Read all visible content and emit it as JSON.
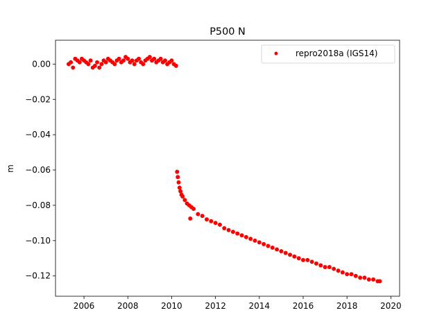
{
  "chart_data": {
    "type": "scatter",
    "title": "P500 N",
    "xlabel": "",
    "ylabel": "m",
    "xlim": [
      2004.7,
      2020.4
    ],
    "ylim": [
      -0.1315,
      0.0135
    ],
    "xticks": [
      2006,
      2008,
      2010,
      2012,
      2014,
      2016,
      2018,
      2020
    ],
    "xtick_labels": [
      "2006",
      "2008",
      "2010",
      "2012",
      "2014",
      "2016",
      "2018",
      "2020"
    ],
    "yticks": [
      0.0,
      -0.02,
      -0.04,
      -0.06,
      -0.08,
      -0.1,
      -0.12
    ],
    "ytick_labels": [
      "0.00",
      "−0.02",
      "−0.04",
      "−0.06",
      "−0.08",
      "−0.10",
      "−0.12"
    ],
    "grid": false,
    "legend_position": "top-right",
    "color": "#ff0000",
    "series": [
      {
        "name": "repro2018a (IGS14)",
        "x": [
          2005.3,
          2005.4,
          2005.5,
          2005.6,
          2005.7,
          2005.8,
          2005.9,
          2006.0,
          2006.1,
          2006.2,
          2006.3,
          2006.4,
          2006.5,
          2006.6,
          2006.7,
          2006.8,
          2006.9,
          2007.0,
          2007.1,
          2007.2,
          2007.3,
          2007.4,
          2007.5,
          2007.6,
          2007.7,
          2007.8,
          2007.9,
          2008.0,
          2008.1,
          2008.2,
          2008.3,
          2008.4,
          2008.5,
          2008.6,
          2008.7,
          2008.8,
          2008.9,
          2009.0,
          2009.1,
          2009.2,
          2009.3,
          2009.4,
          2009.5,
          2009.6,
          2009.7,
          2009.8,
          2009.9,
          2010.0,
          2010.1,
          2010.2,
          2010.25,
          2010.28,
          2010.32,
          2010.36,
          2010.4,
          2010.45,
          2010.5,
          2010.6,
          2010.7,
          2010.8,
          2010.9,
          2011.0,
          2011.2,
          2011.4,
          2011.6,
          2011.8,
          2012.0,
          2012.2,
          2012.4,
          2012.6,
          2012.8,
          2013.0,
          2013.2,
          2013.4,
          2013.6,
          2013.8,
          2014.0,
          2014.2,
          2014.4,
          2014.6,
          2014.8,
          2015.0,
          2015.2,
          2015.4,
          2015.6,
          2015.8,
          2016.0,
          2016.2,
          2016.4,
          2016.6,
          2016.8,
          2017.0,
          2017.2,
          2017.4,
          2017.6,
          2017.8,
          2018.0,
          2018.2,
          2018.4,
          2018.6,
          2018.8,
          2019.0,
          2019.2,
          2019.4,
          2019.5,
          2010.85
        ],
        "y": [
          0.0,
          0.001,
          -0.002,
          0.003,
          0.002,
          0.001,
          0.003,
          0.002,
          0.001,
          0.0,
          0.002,
          -0.002,
          -0.001,
          0.001,
          -0.002,
          0.0,
          0.002,
          0.001,
          0.003,
          0.002,
          0.001,
          0.0,
          0.002,
          0.003,
          0.001,
          0.002,
          0.004,
          0.003,
          0.001,
          0.002,
          0.0,
          0.002,
          0.003,
          0.001,
          0.0,
          0.002,
          0.003,
          0.004,
          0.002,
          0.003,
          0.001,
          0.002,
          0.003,
          0.001,
          0.002,
          0.0,
          0.001,
          0.002,
          0.0,
          -0.001,
          -0.061,
          -0.064,
          -0.067,
          -0.07,
          -0.072,
          -0.074,
          -0.075,
          -0.077,
          -0.079,
          -0.08,
          -0.081,
          -0.082,
          -0.085,
          -0.086,
          -0.088,
          -0.089,
          -0.09,
          -0.091,
          -0.093,
          -0.094,
          -0.095,
          -0.096,
          -0.097,
          -0.098,
          -0.099,
          -0.1,
          -0.101,
          -0.102,
          -0.103,
          -0.104,
          -0.105,
          -0.106,
          -0.107,
          -0.108,
          -0.109,
          -0.11,
          -0.111,
          -0.111,
          -0.112,
          -0.113,
          -0.114,
          -0.115,
          -0.115,
          -0.116,
          -0.117,
          -0.118,
          -0.119,
          -0.119,
          -0.12,
          -0.121,
          -0.121,
          -0.122,
          -0.122,
          -0.123,
          -0.123,
          -0.0875
        ]
      }
    ]
  }
}
